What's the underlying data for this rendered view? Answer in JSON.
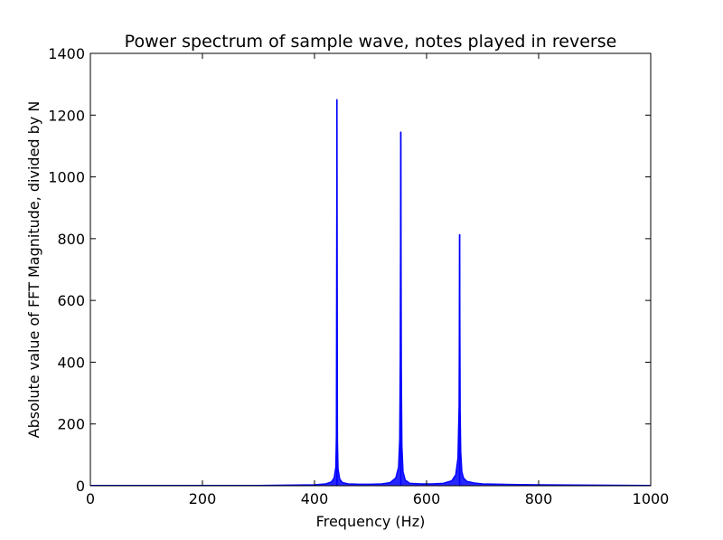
{
  "chart_data": {
    "type": "line",
    "title": "Power spectrum of sample wave, notes played in reverse",
    "xlabel": "Frequency (Hz)",
    "ylabel": "Absolute value of FFT Magnitude, divided by N",
    "xlim": [
      0,
      1000
    ],
    "ylim": [
      0,
      1400
    ],
    "xticks": [
      0,
      200,
      400,
      600,
      800,
      1000
    ],
    "yticks": [
      0,
      200,
      400,
      600,
      800,
      1000,
      1200,
      1400
    ],
    "xtick_labels": [
      "0",
      "200",
      "400",
      "600",
      "800",
      "1000"
    ],
    "ytick_labels": [
      "0",
      "200",
      "400",
      "600",
      "800",
      "1000",
      "1200",
      "1400"
    ],
    "grid": false,
    "series": [
      {
        "color": "#0000ff",
        "peaks": [
          {
            "x": 440,
            "y": 1250
          },
          {
            "x": 554,
            "y": 1145
          },
          {
            "x": 659,
            "y": 813
          }
        ],
        "x": [
          0,
          100,
          200,
          300,
          350,
          400,
          420,
          430,
          435,
          438,
          439,
          440,
          441,
          442,
          445,
          450,
          460,
          480,
          500,
          520,
          535,
          545,
          550,
          552,
          553,
          554,
          555,
          556,
          558,
          562,
          570,
          590,
          610,
          630,
          645,
          652,
          656,
          658,
          659,
          660,
          661,
          663,
          666,
          672,
          685,
          700,
          750,
          800,
          900,
          1000
        ],
        "y": [
          1,
          1,
          1,
          1,
          2,
          3,
          6,
          12,
          25,
          60,
          160,
          1250,
          150,
          55,
          22,
          10,
          6,
          5,
          5,
          6,
          10,
          25,
          60,
          150,
          410,
          1145,
          380,
          130,
          45,
          18,
          8,
          6,
          6,
          8,
          16,
          35,
          90,
          260,
          813,
          240,
          110,
          45,
          25,
          14,
          9,
          6,
          4,
          3,
          2,
          1
        ]
      }
    ]
  }
}
